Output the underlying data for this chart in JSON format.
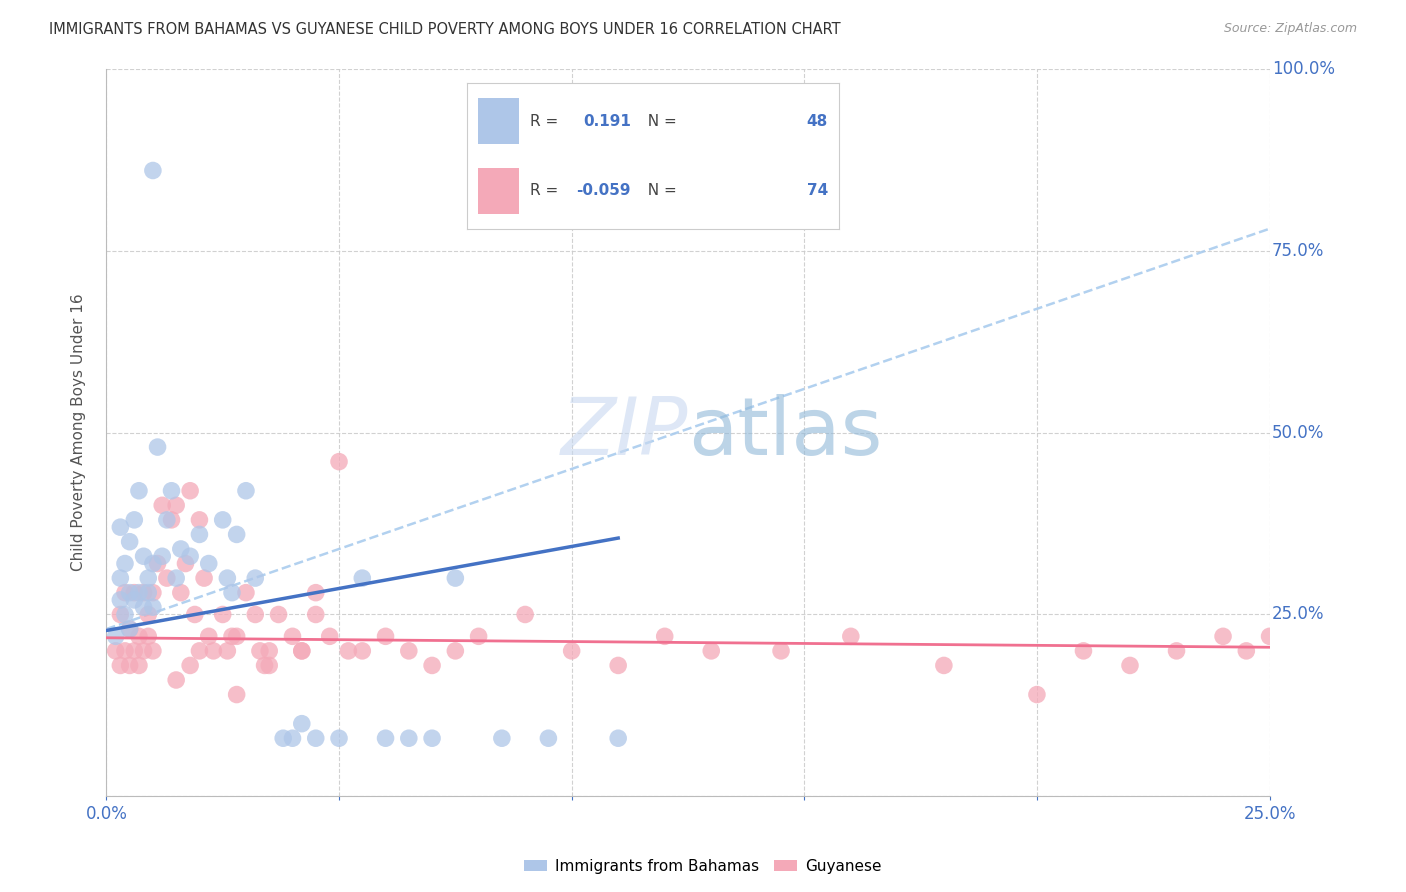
{
  "title": "IMMIGRANTS FROM BAHAMAS VS GUYANESE CHILD POVERTY AMONG BOYS UNDER 16 CORRELATION CHART",
  "source": "Source: ZipAtlas.com",
  "ylabel": "Child Poverty Among Boys Under 16",
  "xlim": [
    0.0,
    0.25
  ],
  "ylim": [
    0.0,
    1.0
  ],
  "R_bahamas": 0.191,
  "N_bahamas": 48,
  "R_guyanese": -0.059,
  "N_guyanese": 74,
  "color_bahamas": "#aec6e8",
  "color_guyanese": "#f4a9b8",
  "color_bahamas_line": "#4472c4",
  "color_guyanese_line": "#f07090",
  "watermark_zip_color": "#c8d8f0",
  "watermark_atlas_color": "#90b8d8",
  "bahamas_x": [
    0.002,
    0.003,
    0.003,
    0.003,
    0.004,
    0.004,
    0.005,
    0.005,
    0.005,
    0.006,
    0.006,
    0.007,
    0.007,
    0.008,
    0.008,
    0.009,
    0.009,
    0.01,
    0.01,
    0.01,
    0.011,
    0.012,
    0.013,
    0.014,
    0.015,
    0.016,
    0.018,
    0.02,
    0.022,
    0.025,
    0.026,
    0.027,
    0.028,
    0.03,
    0.032,
    0.038,
    0.04,
    0.042,
    0.045,
    0.05,
    0.055,
    0.06,
    0.065,
    0.07,
    0.075,
    0.085,
    0.095,
    0.11
  ],
  "bahamas_y": [
    0.22,
    0.27,
    0.3,
    0.37,
    0.25,
    0.32,
    0.23,
    0.28,
    0.35,
    0.27,
    0.38,
    0.28,
    0.42,
    0.26,
    0.33,
    0.28,
    0.3,
    0.26,
    0.32,
    0.86,
    0.48,
    0.33,
    0.38,
    0.42,
    0.3,
    0.34,
    0.33,
    0.36,
    0.32,
    0.38,
    0.3,
    0.28,
    0.36,
    0.42,
    0.3,
    0.08,
    0.08,
    0.1,
    0.08,
    0.08,
    0.3,
    0.08,
    0.08,
    0.08,
    0.3,
    0.08,
    0.08,
    0.08
  ],
  "guyanese_x": [
    0.002,
    0.003,
    0.003,
    0.004,
    0.004,
    0.005,
    0.005,
    0.006,
    0.006,
    0.007,
    0.007,
    0.008,
    0.008,
    0.009,
    0.009,
    0.01,
    0.01,
    0.011,
    0.012,
    0.013,
    0.014,
    0.015,
    0.016,
    0.017,
    0.018,
    0.019,
    0.02,
    0.021,
    0.022,
    0.023,
    0.025,
    0.026,
    0.027,
    0.028,
    0.03,
    0.032,
    0.033,
    0.034,
    0.035,
    0.037,
    0.04,
    0.042,
    0.045,
    0.048,
    0.05,
    0.055,
    0.06,
    0.065,
    0.07,
    0.075,
    0.08,
    0.09,
    0.1,
    0.11,
    0.12,
    0.13,
    0.145,
    0.16,
    0.18,
    0.2,
    0.21,
    0.22,
    0.23,
    0.24,
    0.245,
    0.25,
    0.052,
    0.045,
    0.042,
    0.035,
    0.028,
    0.02,
    0.018,
    0.015
  ],
  "guyanese_y": [
    0.2,
    0.18,
    0.25,
    0.2,
    0.28,
    0.18,
    0.23,
    0.2,
    0.28,
    0.22,
    0.18,
    0.28,
    0.2,
    0.22,
    0.25,
    0.2,
    0.28,
    0.32,
    0.4,
    0.3,
    0.38,
    0.4,
    0.28,
    0.32,
    0.42,
    0.25,
    0.38,
    0.3,
    0.22,
    0.2,
    0.25,
    0.2,
    0.22,
    0.22,
    0.28,
    0.25,
    0.2,
    0.18,
    0.2,
    0.25,
    0.22,
    0.2,
    0.28,
    0.22,
    0.46,
    0.2,
    0.22,
    0.2,
    0.18,
    0.2,
    0.22,
    0.25,
    0.2,
    0.18,
    0.22,
    0.2,
    0.2,
    0.22,
    0.18,
    0.14,
    0.2,
    0.18,
    0.2,
    0.22,
    0.2,
    0.22,
    0.2,
    0.25,
    0.2,
    0.18,
    0.14,
    0.2,
    0.18,
    0.16
  ],
  "bah_line_x0": 0.0,
  "bah_line_y0": 0.228,
  "bah_line_x1": 0.11,
  "bah_line_y1": 0.355,
  "guy_line_x0": 0.0,
  "guy_line_y0": 0.218,
  "guy_line_x1": 0.25,
  "guy_line_y1": 0.205,
  "dash_line_x0": 0.0,
  "dash_line_y0": 0.23,
  "dash_line_x1": 0.25,
  "dash_line_y1": 0.78
}
